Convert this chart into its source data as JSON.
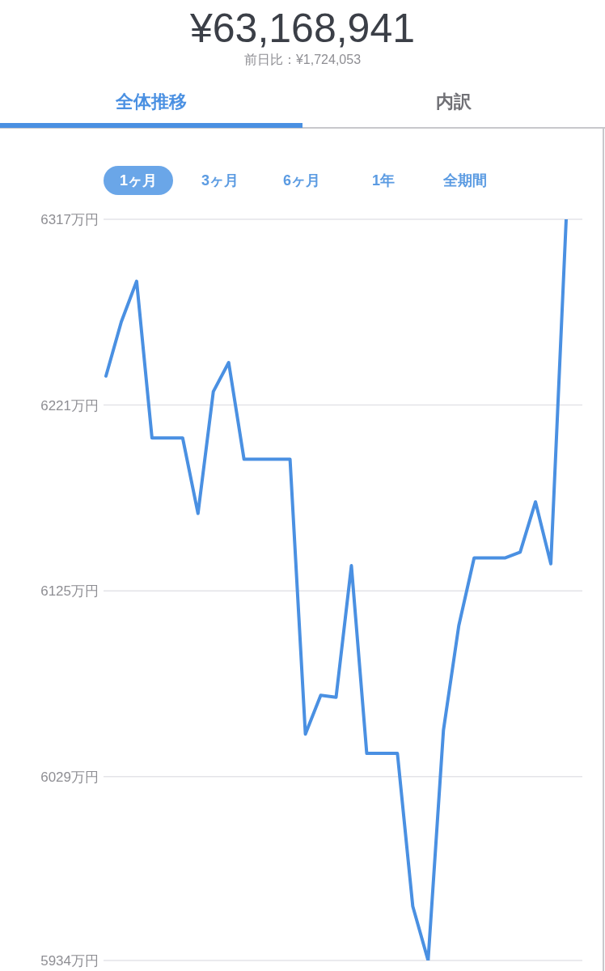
{
  "chart_data": {
    "type": "line",
    "title": "¥63,168,941",
    "subtitle": "前日比：¥1,724,053",
    "annotations": [
      "全体推移",
      "内訳",
      "1ヶ月",
      "3ヶ月",
      "6ヶ月",
      "1年",
      "全期間"
    ],
    "categories": [
      null,
      null,
      null,
      null,
      null,
      null,
      null,
      null,
      null,
      null,
      null,
      null,
      null,
      null,
      null,
      null,
      null,
      null,
      null,
      null,
      null,
      null,
      null,
      null,
      null,
      null,
      null,
      null,
      null,
      null,
      null
    ],
    "series": [
      {
        "color": "#4a90e2",
        "values": [
          6236,
          6264,
          6285,
          6204,
          6204,
          6204,
          6165,
          6228,
          6243,
          6193,
          6193,
          6193,
          6193,
          6051,
          6071,
          6070,
          6138,
          6041,
          6041,
          6041,
          5962,
          5934,
          6053,
          6107,
          6142,
          6142,
          6142,
          6145,
          6171,
          6139,
          6317
        ]
      }
    ],
    "ylim": [
      5934,
      6317
    ],
    "yticks": [
      {
        "value": 6317,
        "label": "6317万円"
      },
      {
        "value": 6221,
        "label": "6221万円"
      },
      {
        "value": 6125,
        "label": "6125万円"
      },
      {
        "value": 6029,
        "label": "6029万円"
      },
      {
        "value": 5934,
        "label": "5934万円"
      }
    ],
    "grid": "y",
    "tick_labels": "y"
  }
}
